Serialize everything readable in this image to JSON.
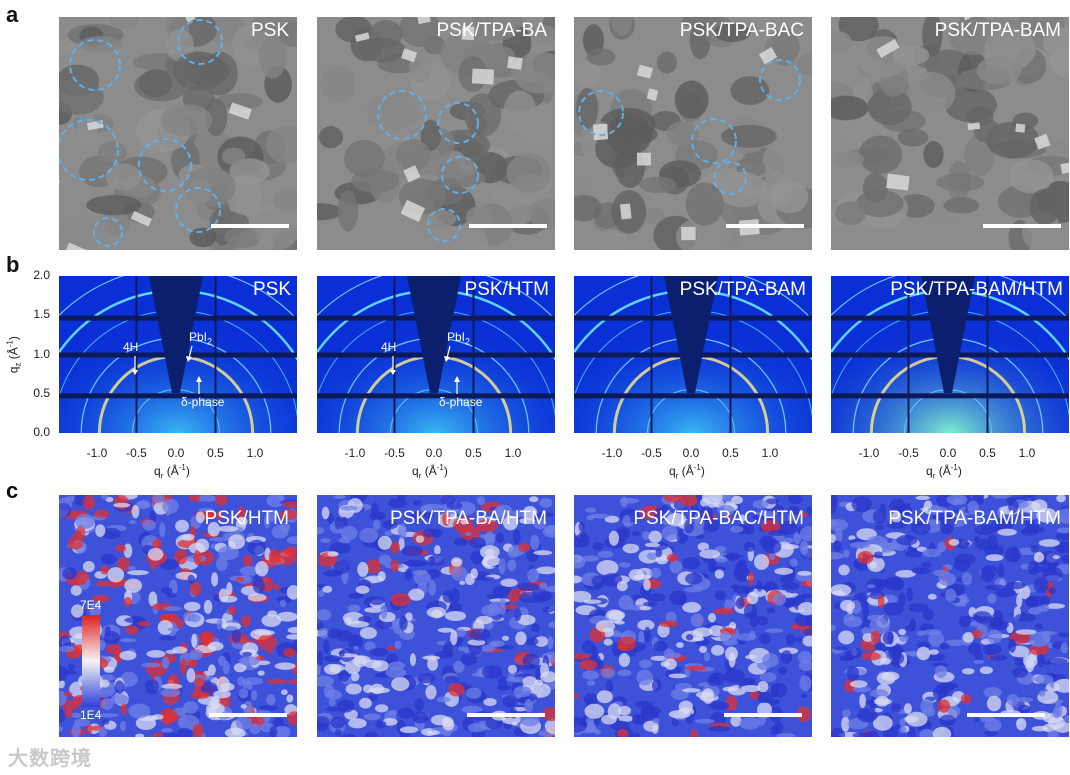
{
  "panel_labels": {
    "a": "a",
    "b": "b",
    "c": "c"
  },
  "row_a": {
    "titles": [
      "PSK",
      "PSK/TPA-BA",
      "PSK/TPA-BAC",
      "PSK/TPA-BAM"
    ]
  },
  "row_b": {
    "titles": [
      "PSK",
      "PSK/HTM",
      "PSK/TPA-BAM",
      "PSK/TPA-BAM/HTM"
    ],
    "y_ticks": [
      "2.0",
      "1.5",
      "1.0",
      "0.5",
      "0.0"
    ],
    "x_ticks": [
      "-1.0",
      "-0.5",
      "0.0",
      "0.5",
      "1.0"
    ],
    "ylabel": "q",
    "ylabel_sub": "z",
    "ylabel_unit": "(Å",
    "ylabel_sup": "-1",
    "xlabel": "q",
    "xlabel_sub": "r",
    "xlabel_unit": "(Å",
    "xlabel_sup": "-1",
    "close_paren": ")",
    "annotations": {
      "h4": "4H",
      "pbi": "PbI",
      "pbi_sub": "2",
      "delta": "δ-phase"
    }
  },
  "row_c": {
    "titles": [
      "PSK/HTM",
      "PSK/TPA-BA/HTM",
      "PSK/TPA-BAC/HTM",
      "PSK/TPA-BAM/HTM"
    ],
    "colorbar": {
      "max": "7E4",
      "min": "1E4"
    },
    "red_fraction": [
      0.32,
      0.06,
      0.08,
      0.03
    ]
  },
  "colors": {
    "sem_bg": "#8c8c8c",
    "giwaxs_bg": "#0a2fd6",
    "map_blue": "#3d52d9",
    "map_red": "#e23030"
  },
  "watermark": "大数跨境"
}
